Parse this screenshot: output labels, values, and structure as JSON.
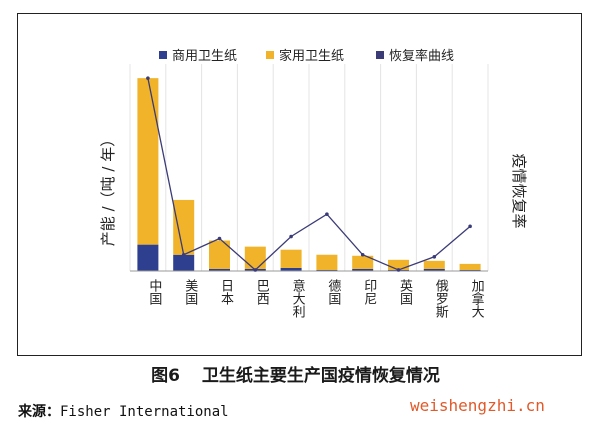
{
  "figure": {
    "number": "图6",
    "title": "卫生纸主要生产国疫情恢复情况",
    "source_label": "来源：",
    "source_value": "Fisher International",
    "watermark": "weishengzhi.cn"
  },
  "chart_data": {
    "type": "bar",
    "stacked": true,
    "categories": [
      "中国",
      "美国",
      "日本",
      "巴西",
      "意大利",
      "德国",
      "印尼",
      "英国",
      "俄罗斯",
      "加拿大"
    ],
    "series": [
      {
        "name": "商用卫生纸",
        "color": "#2e3f8f",
        "values": [
          13,
          8,
          1,
          1,
          1.5,
          0.5,
          1,
          0.5,
          1,
          0.5
        ]
      },
      {
        "name": "家用卫生纸",
        "color": "#f0b32a",
        "values": [
          82,
          27,
          14,
          11,
          9,
          7.5,
          6.5,
          5,
          4,
          3
        ]
      },
      {
        "name": "恢复率曲线",
        "type": "line",
        "axis": "right",
        "color": "#3b3b78",
        "values": [
          95,
          8,
          16,
          0.5,
          17,
          28,
          8,
          0.5,
          7,
          22
        ]
      }
    ],
    "ylabel": "产能 /（吨 / 年）",
    "ylabel_right": "疫情恢复率",
    "ylim": [
      0,
      100
    ],
    "ylim_right": [
      0,
      100
    ],
    "legend_position": "top",
    "grid": "vertical"
  }
}
